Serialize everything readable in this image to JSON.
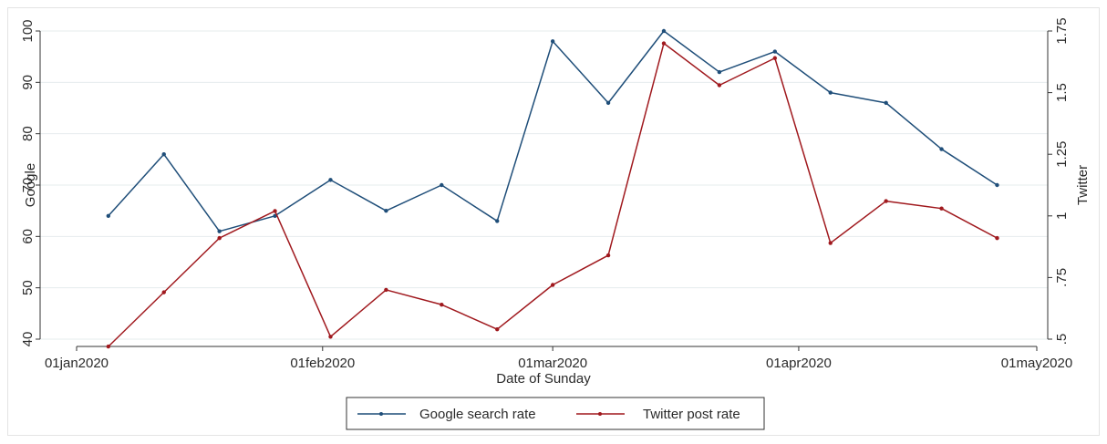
{
  "chart_data": {
    "type": "line",
    "title": "",
    "xlabel": "Date of Sunday",
    "ylabel": "Google",
    "y2label": "Twitter",
    "x_ticks": [
      "01jan2020",
      "01feb2020",
      "01mar2020",
      "01apr2020",
      "01may2020"
    ],
    "x_tick_dates": [
      "2020-01-01",
      "2020-02-01",
      "2020-03-01",
      "2020-04-01",
      "2020-05-01"
    ],
    "y_ticks": [
      "40",
      "50",
      "60",
      "70",
      "80",
      "90",
      "100"
    ],
    "y_tick_values": [
      40,
      50,
      60,
      70,
      80,
      90,
      100
    ],
    "y2_ticks": [
      ".5",
      ".75",
      "1",
      "1.25",
      "1.5",
      "1.75"
    ],
    "y2_tick_values": [
      0.5,
      0.75,
      1.0,
      1.25,
      1.5,
      1.75
    ],
    "ylim": [
      40,
      100
    ],
    "y2lim": [
      0.5,
      1.75
    ],
    "grid": true,
    "legend_position": "bottom",
    "x": [
      "2020-01-05",
      "2020-01-12",
      "2020-01-19",
      "2020-01-26",
      "2020-02-02",
      "2020-02-09",
      "2020-02-16",
      "2020-02-23",
      "2020-03-01",
      "2020-03-08",
      "2020-03-15",
      "2020-03-22",
      "2020-03-29",
      "2020-04-05",
      "2020-04-12",
      "2020-04-19",
      "2020-04-26"
    ],
    "series": [
      {
        "name": "Google search rate",
        "axis": "left",
        "color": "#1f4e79",
        "values": [
          64,
          76,
          61,
          64,
          71,
          65,
          70,
          63,
          98,
          86,
          100,
          92,
          96,
          88,
          86,
          77,
          70
        ]
      },
      {
        "name": "Twitter post rate",
        "axis": "right",
        "color": "#a0191e",
        "values": [
          0.47,
          0.69,
          0.91,
          1.02,
          0.51,
          0.7,
          0.64,
          0.54,
          0.72,
          0.84,
          1.7,
          1.53,
          1.64,
          0.89,
          1.06,
          1.03,
          0.91
        ]
      }
    ]
  }
}
